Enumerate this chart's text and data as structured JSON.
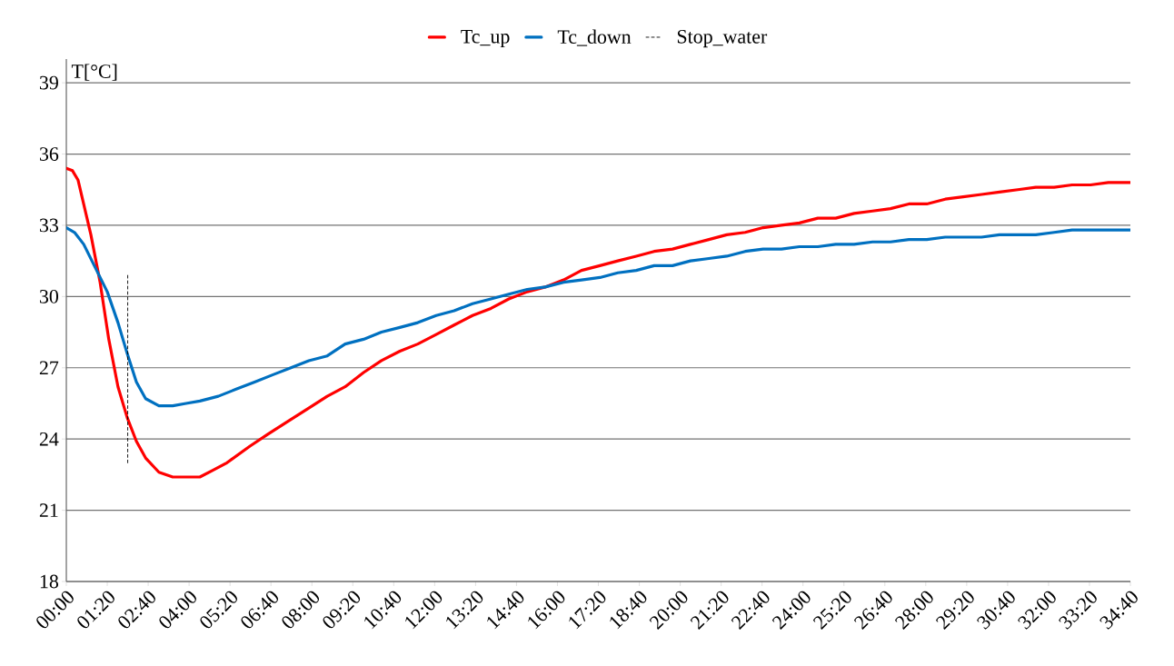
{
  "chart_data": {
    "type": "line",
    "ylabel": "T[°C]",
    "legend": "top",
    "grid": "y",
    "marker": "none",
    "xlim": [
      0,
      2080
    ],
    "ylim": [
      18,
      40
    ],
    "yticks": [
      18,
      21,
      24,
      27,
      30,
      33,
      36,
      39
    ],
    "xticks": [
      {
        "value": 0,
        "label": "00:00"
      },
      {
        "value": 80,
        "label": "01:20"
      },
      {
        "value": 160,
        "label": "02:40"
      },
      {
        "value": 240,
        "label": "04:00"
      },
      {
        "value": 320,
        "label": "05:20"
      },
      {
        "value": 400,
        "label": "06:40"
      },
      {
        "value": 480,
        "label": "08:00"
      },
      {
        "value": 560,
        "label": "09:20"
      },
      {
        "value": 640,
        "label": "10:40"
      },
      {
        "value": 720,
        "label": "12:00"
      },
      {
        "value": 800,
        "label": "13:20"
      },
      {
        "value": 880,
        "label": "14:40"
      },
      {
        "value": 960,
        "label": "16:00"
      },
      {
        "value": 1040,
        "label": "17:20"
      },
      {
        "value": 1120,
        "label": "18:40"
      },
      {
        "value": 1200,
        "label": "20:00"
      },
      {
        "value": 1280,
        "label": "21:20"
      },
      {
        "value": 1360,
        "label": "22:40"
      },
      {
        "value": 1440,
        "label": "24:00"
      },
      {
        "value": 1520,
        "label": "25:20"
      },
      {
        "value": 1600,
        "label": "26:40"
      },
      {
        "value": 1680,
        "label": "28:00"
      },
      {
        "value": 1760,
        "label": "29:20"
      },
      {
        "value": 1840,
        "label": "30:40"
      },
      {
        "value": 1920,
        "label": "32:00"
      },
      {
        "value": 2000,
        "label": "33:20"
      },
      {
        "value": 2080,
        "label": "34:40"
      }
    ],
    "series": [
      {
        "name": "Tc_up",
        "color": "#ff0000",
        "line_style": "solid",
        "x": [
          0,
          12,
          23,
          48,
          66,
          83,
          101,
          119,
          137,
          155,
          181,
          208,
          234,
          261,
          288,
          314,
          359,
          394,
          430,
          474,
          510,
          545,
          581,
          616,
          652,
          687,
          723,
          758,
          794,
          830,
          865,
          901,
          936,
          972,
          1007,
          1043,
          1078,
          1114,
          1149,
          1185,
          1220,
          1256,
          1291,
          1327,
          1362,
          1398,
          1433,
          1469,
          1504,
          1540,
          1576,
          1611,
          1647,
          1682,
          1718,
          1753,
          1789,
          1824,
          1860,
          1895,
          1931,
          1966,
          2002,
          2037,
          2080
        ],
        "values": [
          35.4,
          35.3,
          34.9,
          32.6,
          30.6,
          28.2,
          26.2,
          24.9,
          23.9,
          23.2,
          22.6,
          22.4,
          22.4,
          22.4,
          22.7,
          23.0,
          23.7,
          24.2,
          24.7,
          25.3,
          25.8,
          26.2,
          26.8,
          27.3,
          27.7,
          28.0,
          28.4,
          28.8,
          29.2,
          29.5,
          29.9,
          30.2,
          30.4,
          30.7,
          31.1,
          31.3,
          31.5,
          31.7,
          31.9,
          32.0,
          32.2,
          32.4,
          32.6,
          32.7,
          32.9,
          33.0,
          33.1,
          33.3,
          33.3,
          33.5,
          33.6,
          33.7,
          33.9,
          33.9,
          34.1,
          34.2,
          34.3,
          34.4,
          34.5,
          34.6,
          34.6,
          34.7,
          34.7,
          34.8,
          34.8
        ]
      },
      {
        "name": "Tc_down",
        "color": "#0070c0",
        "line_style": "solid",
        "x": [
          0,
          16,
          34,
          57,
          80,
          101,
          119,
          137,
          155,
          181,
          208,
          234,
          261,
          297,
          332,
          368,
          403,
          439,
          474,
          510,
          545,
          581,
          616,
          652,
          687,
          723,
          758,
          794,
          830,
          865,
          901,
          936,
          972,
          1007,
          1043,
          1078,
          1114,
          1149,
          1185,
          1220,
          1256,
          1291,
          1327,
          1362,
          1398,
          1433,
          1469,
          1504,
          1540,
          1576,
          1611,
          1647,
          1682,
          1718,
          1753,
          1789,
          1824,
          1860,
          1895,
          1931,
          1966,
          2002,
          2080
        ],
        "values": [
          32.9,
          32.7,
          32.2,
          31.2,
          30.2,
          28.9,
          27.6,
          26.4,
          25.7,
          25.4,
          25.4,
          25.5,
          25.6,
          25.8,
          26.1,
          26.4,
          26.7,
          27.0,
          27.3,
          27.5,
          28.0,
          28.2,
          28.5,
          28.7,
          28.9,
          29.2,
          29.4,
          29.7,
          29.9,
          30.1,
          30.3,
          30.4,
          30.6,
          30.7,
          30.8,
          31.0,
          31.1,
          31.3,
          31.3,
          31.5,
          31.6,
          31.7,
          31.9,
          32.0,
          32.0,
          32.1,
          32.1,
          32.2,
          32.2,
          32.3,
          32.3,
          32.4,
          32.4,
          32.5,
          32.5,
          32.5,
          32.6,
          32.6,
          32.6,
          32.7,
          32.8,
          32.8,
          32.8
        ]
      },
      {
        "name": "Stop_water",
        "color": "#000000",
        "line_style": "dashed",
        "x": [
          120,
          120
        ],
        "values": [
          23,
          31
        ]
      }
    ]
  }
}
